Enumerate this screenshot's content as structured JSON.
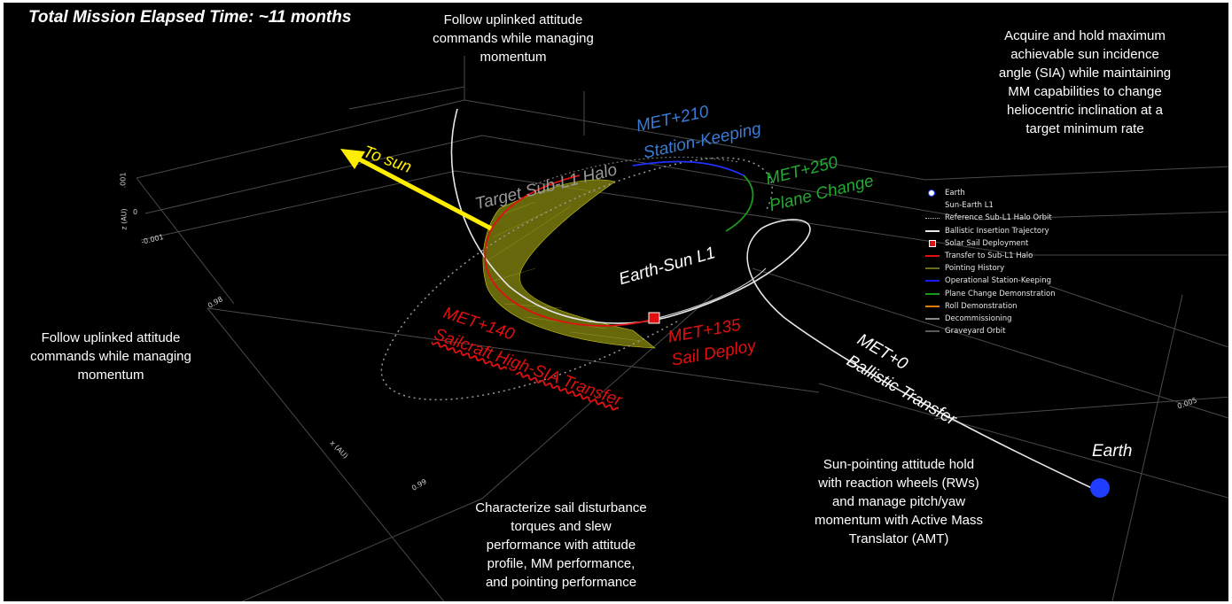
{
  "title": "Total Mission Elapsed Time: ~11 months",
  "annotations": {
    "top_center": [
      "Follow uplinked attitude",
      "commands while managing",
      "momentum"
    ],
    "top_right": [
      "Acquire and hold maximum",
      "achievable sun incidence",
      "angle (SIA) while maintaining",
      "MM capabilities to change",
      "heliocentric inclination at a",
      "target minimum rate"
    ],
    "left": [
      "Follow uplinked attitude",
      "commands while managing",
      "momentum"
    ],
    "bottom_center": [
      "Characterize sail disturbance",
      "torques and slew",
      "performance with attitude",
      "profile, MM performance,",
      "and pointing performance"
    ],
    "bottom_right": [
      "Sun-pointing attitude hold",
      "with reaction wheels (RWs)",
      "and manage pitch/yaw",
      "momentum with Active Mass",
      "Translator (AMT)"
    ]
  },
  "labels": {
    "to_sun": "To sun",
    "target_halo": "Target Sub-L1 Halo",
    "met210": "MET+210",
    "station_keeping": "Station-Keeping",
    "met250": "MET+250",
    "plane_change": "Plane Change",
    "earth_sun_l1": "Earth-Sun L1",
    "met140": "MET+140",
    "sailcraft_transfer": "Sailcraft High-SIA Transfer",
    "met135": "MET+135",
    "sail_deploy": "Sail Deploy",
    "met0": "MET+0",
    "ballistic_transfer": "Ballistic Transfer",
    "earth": "Earth"
  },
  "axis_ticks": {
    "t001": ".001",
    "t0": "0",
    "tm001": "-0.001",
    "z_title": "z (AU)",
    "t098": "0.98",
    "x_title": "x (AU)",
    "t099": "0.99",
    "t0005": "0.005"
  },
  "legend": [
    {
      "label": "Earth",
      "symbol": "circle",
      "color": "#1f3cff"
    },
    {
      "label": "Sun-Earth L1",
      "symbol": "none",
      "color": "#000000"
    },
    {
      "label": "Reference Sub-L1 Halo Orbit",
      "symbol": "dotted",
      "color": "#bbbbbb"
    },
    {
      "label": "Ballistic Insertion Trajectory",
      "symbol": "line",
      "color": "#e6e6e6"
    },
    {
      "label": "Solar Sail Deployment",
      "symbol": "square",
      "color": "#e01010"
    },
    {
      "label": "Transfer to Sub-L1 Halo",
      "symbol": "line",
      "color": "#e01010"
    },
    {
      "label": "Pointing History",
      "symbol": "line",
      "color": "#6b6b1a"
    },
    {
      "label": "Operational Station-Keeping",
      "symbol": "line",
      "color": "#1a1aff"
    },
    {
      "label": "Plane Change Demonstration",
      "symbol": "line",
      "color": "#1a9a1a"
    },
    {
      "label": "Roll Demonstration",
      "symbol": "line",
      "color": "#e07a10"
    },
    {
      "label": "Decommissioning",
      "symbol": "line",
      "color": "#8a8a8a"
    },
    {
      "label": "Graveyard Orbit",
      "symbol": "line",
      "color": "#5a5a5a"
    }
  ],
  "colors": {
    "background": "#000000",
    "transfer_red": "#e01010",
    "station_keeping_blue": "#3a7bd5",
    "plane_change_green": "#22aa33",
    "sun_arrow_yellow": "#ffee00",
    "earth_blue": "#1f3cff",
    "halo_grey": "#999999"
  }
}
